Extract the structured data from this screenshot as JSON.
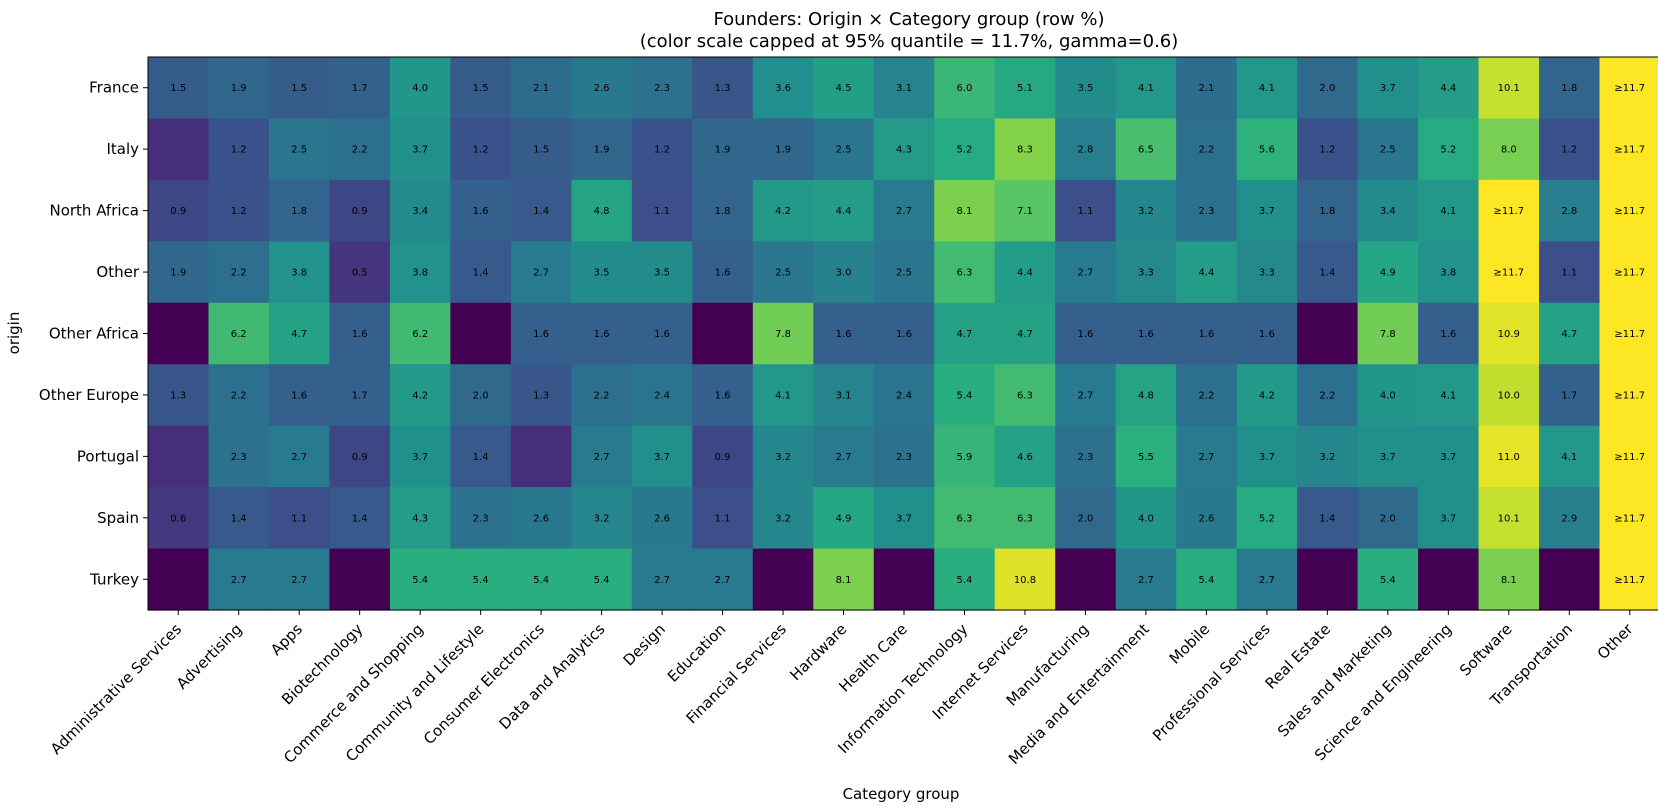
{
  "chart_data": {
    "type": "heatmap",
    "title": "Founders: Origin × Category group (row %)",
    "subtitle": "(color scale capped at 95% quantile = 11.7%, gamma=0.6)",
    "xlabel": "Category group",
    "ylabel": "origin",
    "colormap": "viridis",
    "vmin": 0,
    "vmax": 11.7,
    "gamma": 0.6,
    "cap_label": "≥11.7",
    "x": [
      "Administrative Services",
      "Advertising",
      "Apps",
      "Biotechnology",
      "Commerce and Shopping",
      "Community and Lifestyle",
      "Consumer Electronics",
      "Data and Analytics",
      "Design",
      "Education",
      "Financial Services",
      "Hardware",
      "Health Care",
      "Information Technology",
      "Internet Services",
      "Manufacturing",
      "Media and Entertainment",
      "Mobile",
      "Professional Services",
      "Real Estate",
      "Sales and Marketing",
      "Science and Engineering",
      "Software",
      "Transportation",
      "Other"
    ],
    "y": [
      "France",
      "Italy",
      "North Africa",
      "Other",
      "Other Africa",
      "Other Europe",
      "Portugal",
      "Spain",
      "Turkey"
    ],
    "values": [
      [
        1.5,
        1.9,
        1.5,
        1.7,
        4.0,
        1.5,
        2.1,
        2.6,
        2.3,
        1.3,
        3.6,
        4.5,
        3.1,
        6.0,
        5.1,
        3.5,
        4.1,
        2.1,
        4.1,
        2.0,
        3.7,
        4.4,
        10.1,
        1.8,
        11.7
      ],
      [
        0.4,
        1.2,
        2.5,
        2.2,
        3.7,
        1.2,
        1.5,
        1.9,
        1.2,
        1.9,
        1.9,
        2.5,
        4.3,
        5.2,
        8.3,
        2.8,
        6.5,
        2.2,
        5.6,
        1.2,
        2.5,
        5.2,
        8.0,
        1.2,
        11.7
      ],
      [
        0.9,
        1.2,
        1.8,
        0.9,
        3.4,
        1.6,
        1.4,
        4.8,
        1.1,
        1.8,
        4.2,
        4.4,
        2.7,
        8.1,
        7.1,
        1.1,
        3.2,
        2.3,
        3.7,
        1.8,
        3.4,
        4.1,
        11.7,
        2.8,
        11.7
      ],
      [
        1.9,
        2.2,
        3.8,
        0.5,
        3.8,
        1.4,
        2.7,
        3.5,
        3.5,
        1.6,
        2.5,
        3.0,
        2.5,
        6.3,
        4.4,
        2.7,
        3.3,
        4.4,
        3.3,
        1.4,
        4.9,
        3.8,
        11.7,
        1.1,
        11.7
      ],
      [
        0.0,
        6.2,
        4.7,
        1.6,
        6.2,
        0.0,
        1.6,
        1.6,
        1.6,
        0.0,
        7.8,
        1.6,
        1.6,
        4.7,
        4.7,
        1.6,
        1.6,
        1.6,
        1.6,
        0.0,
        7.8,
        1.6,
        10.9,
        4.7,
        11.7
      ],
      [
        1.3,
        2.2,
        1.6,
        1.7,
        4.2,
        2.0,
        1.3,
        2.2,
        2.4,
        1.6,
        4.1,
        3.1,
        2.4,
        5.4,
        6.3,
        2.7,
        4.8,
        2.2,
        4.2,
        2.2,
        4.0,
        4.1,
        10.0,
        1.7,
        11.7
      ],
      [
        0.4,
        2.3,
        2.7,
        0.9,
        3.7,
        1.4,
        0.4,
        2.7,
        3.7,
        0.9,
        3.2,
        2.7,
        2.3,
        5.9,
        4.6,
        2.3,
        5.5,
        2.7,
        3.7,
        3.2,
        3.7,
        3.7,
        11.0,
        4.1,
        11.7
      ],
      [
        0.6,
        1.4,
        1.1,
        1.4,
        4.3,
        2.3,
        2.6,
        3.2,
        2.6,
        1.1,
        3.2,
        4.9,
        3.7,
        6.3,
        6.3,
        2.0,
        4.0,
        2.6,
        5.2,
        1.4,
        2.0,
        3.7,
        10.1,
        2.9,
        11.7
      ],
      [
        0.0,
        2.7,
        2.7,
        0.0,
        5.4,
        5.4,
        5.4,
        5.4,
        2.7,
        2.7,
        0.0,
        8.1,
        0.0,
        5.4,
        10.8,
        0.0,
        2.7,
        5.4,
        2.7,
        0.0,
        5.4,
        0.0,
        8.1,
        0.0,
        11.7
      ]
    ],
    "labels": [
      [
        "1.5",
        "1.9",
        "1.5",
        "1.7",
        "4.0",
        "1.5",
        "2.1",
        "2.6",
        "2.3",
        "1.3",
        "3.6",
        "4.5",
        "3.1",
        "6.0",
        "5.1",
        "3.5",
        "4.1",
        "2.1",
        "4.1",
        "2.0",
        "3.7",
        "4.4",
        "10.1",
        "1.8",
        "≥11.7"
      ],
      [
        "",
        "1.2",
        "2.5",
        "2.2",
        "3.7",
        "1.2",
        "1.5",
        "1.9",
        "1.2",
        "1.9",
        "1.9",
        "2.5",
        "4.3",
        "5.2",
        "8.3",
        "2.8",
        "6.5",
        "2.2",
        "5.6",
        "1.2",
        "2.5",
        "5.2",
        "8.0",
        "1.2",
        "≥11.7"
      ],
      [
        "0.9",
        "1.2",
        "1.8",
        "0.9",
        "3.4",
        "1.6",
        "1.4",
        "4.8",
        "1.1",
        "1.8",
        "4.2",
        "4.4",
        "2.7",
        "8.1",
        "7.1",
        "1.1",
        "3.2",
        "2.3",
        "3.7",
        "1.8",
        "3.4",
        "4.1",
        "≥11.7",
        "2.8",
        "≥11.7"
      ],
      [
        "1.9",
        "2.2",
        "3.8",
        "0.5",
        "3.8",
        "1.4",
        "2.7",
        "3.5",
        "3.5",
        "1.6",
        "2.5",
        "3.0",
        "2.5",
        "6.3",
        "4.4",
        "2.7",
        "3.3",
        "4.4",
        "3.3",
        "1.4",
        "4.9",
        "3.8",
        "≥11.7",
        "1.1",
        "≥11.7"
      ],
      [
        "",
        "6.2",
        "4.7",
        "1.6",
        "6.2",
        "",
        "1.6",
        "1.6",
        "1.6",
        "",
        "7.8",
        "1.6",
        "1.6",
        "4.7",
        "4.7",
        "1.6",
        "1.6",
        "1.6",
        "1.6",
        "",
        "7.8",
        "1.6",
        "10.9",
        "4.7",
        "≥11.7"
      ],
      [
        "1.3",
        "2.2",
        "1.6",
        "1.7",
        "4.2",
        "2.0",
        "1.3",
        "2.2",
        "2.4",
        "1.6",
        "4.1",
        "3.1",
        "2.4",
        "5.4",
        "6.3",
        "2.7",
        "4.8",
        "2.2",
        "4.2",
        "2.2",
        "4.0",
        "4.1",
        "10.0",
        "1.7",
        "≥11.7"
      ],
      [
        "",
        "2.3",
        "2.7",
        "0.9",
        "3.7",
        "1.4",
        "",
        "2.7",
        "3.7",
        "0.9",
        "3.2",
        "2.7",
        "2.3",
        "5.9",
        "4.6",
        "2.3",
        "5.5",
        "2.7",
        "3.7",
        "3.2",
        "3.7",
        "3.7",
        "11.0",
        "4.1",
        "≥11.7"
      ],
      [
        "0.6",
        "1.4",
        "1.1",
        "1.4",
        "4.3",
        "2.3",
        "2.6",
        "3.2",
        "2.6",
        "1.1",
        "3.2",
        "4.9",
        "3.7",
        "6.3",
        "6.3",
        "2.0",
        "4.0",
        "2.6",
        "5.2",
        "1.4",
        "2.0",
        "3.7",
        "10.1",
        "2.9",
        "≥11.7"
      ],
      [
        "",
        "2.7",
        "2.7",
        "",
        "5.4",
        "5.4",
        "5.4",
        "5.4",
        "2.7",
        "2.7",
        "",
        "8.1",
        "",
        "5.4",
        "10.8",
        "",
        "2.7",
        "5.4",
        "2.7",
        "",
        "5.4",
        "",
        "8.1",
        "",
        "≥11.7"
      ]
    ],
    "grid": false,
    "legend": "none"
  }
}
